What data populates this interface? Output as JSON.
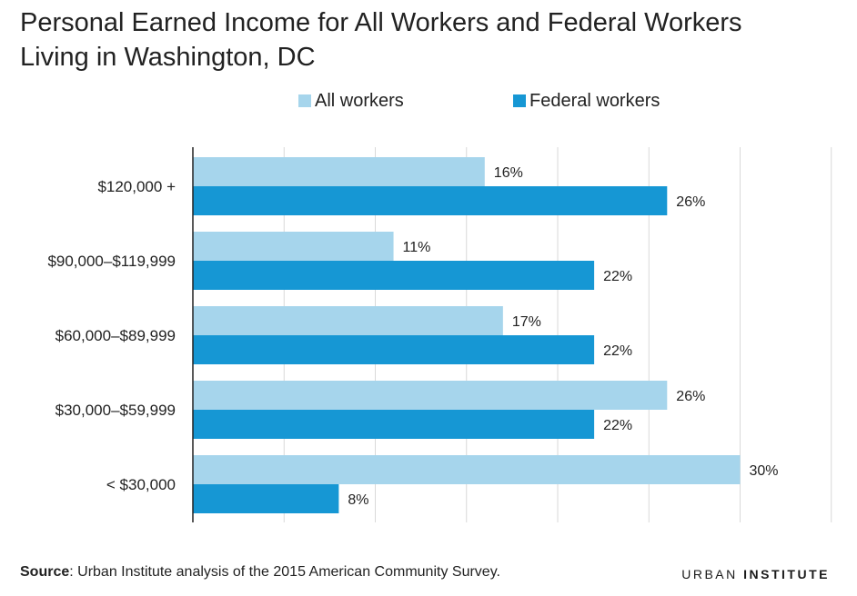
{
  "colors": {
    "all_workers": "#a6d5ec",
    "federal_workers": "#1697d4",
    "grid": "#d9d9d9",
    "axis": "#222222"
  },
  "chart_data": {
    "type": "bar",
    "orientation": "horizontal",
    "title": [
      "Personal Earned Income for All Workers and Federal Workers",
      "Living in Washington, DC"
    ],
    "categories": [
      "$120,000 +",
      "$90,000–$119,999",
      "$60,000–$89,999",
      "$30,000–$59,999",
      "< $30,000"
    ],
    "series": [
      {
        "name": "All workers",
        "values": [
          16,
          11,
          17,
          26,
          30
        ],
        "labels": [
          "16%",
          "11%",
          "17%",
          "26%",
          "30%"
        ]
      },
      {
        "name": "Federal workers",
        "values": [
          26,
          22,
          22,
          22,
          8
        ],
        "labels": [
          "26%",
          "22%",
          "22%",
          "22%",
          "8%"
        ]
      }
    ],
    "xlim": [
      0,
      35
    ],
    "grid": true,
    "legend_position": "top"
  },
  "footer": {
    "source_label": "Source",
    "source_text": ": Urban Institute analysis of the 2015 American Community Survey.",
    "brand_part1": "URBAN",
    "brand_part2": "INSTITUTE"
  }
}
